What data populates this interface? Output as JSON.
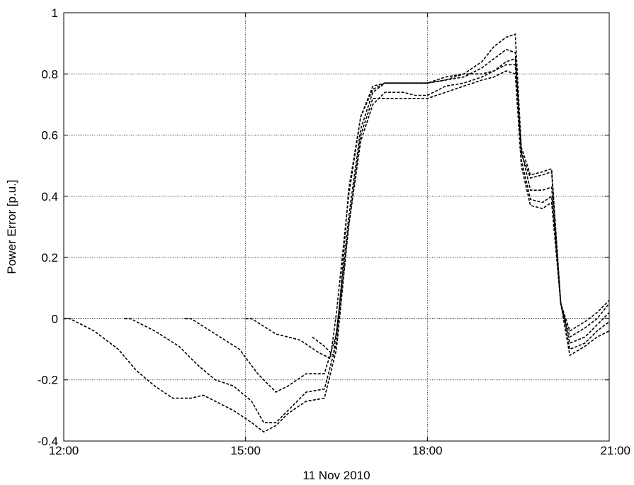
{
  "chart_data": {
    "type": "line",
    "xlabel": "11 Nov 2010",
    "ylabel": "Power Error [p.u.]",
    "xlim": [
      12,
      21
    ],
    "ylim": [
      -0.4,
      1
    ],
    "xticks": [
      12,
      15,
      18,
      21
    ],
    "xtick_labels": [
      "12:00",
      "15:00",
      "18:00",
      "21:00"
    ],
    "yticks": [
      -0.4,
      -0.2,
      0,
      0.2,
      0.4,
      0.6,
      0.8,
      1
    ],
    "ytick_labels": [
      "-0.4",
      "-0.2",
      "0",
      "0.2",
      "0.4",
      "0.6",
      "0.8",
      "1"
    ],
    "grid": true,
    "line_style": "dashed",
    "line_color": "#000000",
    "series": [
      {
        "x": [
          12.0,
          12.1,
          12.5,
          12.9,
          13.2,
          13.5,
          13.8,
          14.1,
          14.3,
          14.5,
          14.8,
          15.1,
          15.3,
          15.5,
          15.7,
          16.0,
          16.3,
          16.5,
          16.7,
          16.9,
          17.1,
          17.3,
          17.6,
          17.8,
          18.0,
          18.3,
          18.6,
          18.9,
          19.1,
          19.3,
          19.45,
          19.55,
          19.7,
          19.9,
          20.05,
          20.2,
          20.35,
          20.6,
          20.8,
          21.0
        ],
        "y": [
          0.0,
          0.0,
          -0.04,
          -0.1,
          -0.17,
          -0.22,
          -0.26,
          -0.26,
          -0.25,
          -0.27,
          -0.3,
          -0.34,
          -0.37,
          -0.35,
          -0.31,
          -0.27,
          -0.26,
          -0.1,
          0.3,
          0.6,
          0.72,
          0.72,
          0.72,
          0.72,
          0.72,
          0.74,
          0.76,
          0.78,
          0.79,
          0.81,
          0.8,
          0.5,
          0.37,
          0.36,
          0.38,
          0.05,
          -0.12,
          -0.09,
          -0.06,
          -0.04
        ]
      },
      {
        "x": [
          13.0,
          13.1,
          13.5,
          13.9,
          14.2,
          14.5,
          14.8,
          15.1,
          15.3,
          15.5,
          15.7,
          16.0,
          16.3,
          16.5,
          16.7,
          16.9,
          17.1,
          17.3,
          17.6,
          17.8,
          18.0,
          18.3,
          18.6,
          18.9,
          19.1,
          19.3,
          19.45,
          19.55,
          19.7,
          19.9,
          20.05,
          20.2,
          20.35,
          20.6,
          20.8,
          21.0
        ],
        "y": [
          0.0,
          0.0,
          -0.04,
          -0.09,
          -0.15,
          -0.2,
          -0.22,
          -0.27,
          -0.34,
          -0.34,
          -0.3,
          -0.24,
          -0.23,
          -0.08,
          0.3,
          0.58,
          0.7,
          0.74,
          0.74,
          0.73,
          0.73,
          0.76,
          0.77,
          0.79,
          0.81,
          0.83,
          0.83,
          0.52,
          0.39,
          0.38,
          0.4,
          0.05,
          -0.1,
          -0.08,
          -0.04,
          -0.01
        ]
      },
      {
        "x": [
          14.0,
          14.1,
          14.5,
          14.9,
          15.2,
          15.5,
          15.7,
          16.0,
          16.3,
          16.5,
          16.7,
          16.9,
          17.1,
          17.3,
          17.6,
          17.8,
          18.0,
          18.3,
          18.6,
          18.9,
          19.1,
          19.3,
          19.45,
          19.55,
          19.7,
          19.9,
          20.05,
          20.2,
          20.35,
          20.6,
          20.8,
          21.0
        ],
        "y": [
          0.0,
          0.0,
          -0.05,
          -0.1,
          -0.18,
          -0.24,
          -0.22,
          -0.18,
          -0.18,
          -0.05,
          0.33,
          0.62,
          0.74,
          0.77,
          0.77,
          0.77,
          0.77,
          0.78,
          0.8,
          0.8,
          0.81,
          0.84,
          0.85,
          0.55,
          0.42,
          0.42,
          0.43,
          0.05,
          -0.08,
          -0.06,
          -0.02,
          0.02
        ]
      },
      {
        "x": [
          15.0,
          15.1,
          15.5,
          15.9,
          16.2,
          16.4,
          16.5,
          16.7,
          16.9,
          17.1,
          17.3,
          17.6,
          17.8,
          18.0,
          18.3,
          18.6,
          18.9,
          19.1,
          19.3,
          19.45,
          19.55,
          19.7,
          19.9,
          20.05,
          20.2,
          20.35,
          20.6,
          20.8,
          21.0
        ],
        "y": [
          0.0,
          0.0,
          -0.05,
          -0.07,
          -0.11,
          -0.13,
          0.02,
          0.4,
          0.66,
          0.76,
          0.77,
          0.77,
          0.77,
          0.77,
          0.78,
          0.79,
          0.82,
          0.85,
          0.88,
          0.87,
          0.54,
          0.46,
          0.47,
          0.48,
          0.05,
          -0.06,
          -0.03,
          0.0,
          0.05
        ]
      },
      {
        "x": [
          16.1,
          16.3,
          16.45,
          16.55,
          16.7,
          16.9,
          17.1,
          17.3,
          17.6,
          17.8,
          18.0,
          18.3,
          18.6,
          18.9,
          19.1,
          19.3,
          19.45,
          19.55,
          19.7,
          19.9,
          20.05,
          20.2,
          20.35,
          20.6,
          20.8,
          21.0
        ],
        "y": [
          -0.06,
          -0.09,
          -0.12,
          0.04,
          0.42,
          0.66,
          0.75,
          0.77,
          0.77,
          0.77,
          0.77,
          0.79,
          0.8,
          0.84,
          0.89,
          0.92,
          0.93,
          0.56,
          0.47,
          0.48,
          0.49,
          0.05,
          -0.04,
          -0.01,
          0.02,
          0.06
        ]
      }
    ]
  }
}
